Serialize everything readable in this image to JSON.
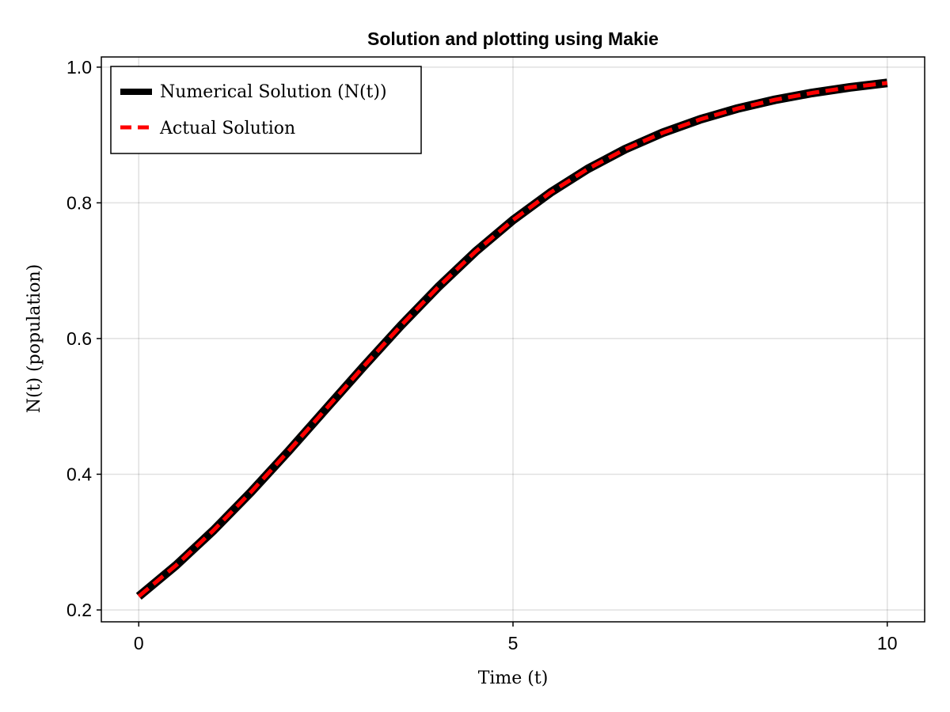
{
  "chart_data": {
    "type": "line",
    "title": "Solution and plotting using Makie",
    "xlabel": "Time (t)",
    "ylabel": "N(t) (population)",
    "xlim": [
      -0.5,
      10.5
    ],
    "ylim": [
      0.1825,
      1.015
    ],
    "xticks": [
      0,
      5,
      10
    ],
    "xtick_labels": [
      "0",
      "5",
      "10"
    ],
    "yticks": [
      0.2,
      0.4,
      0.6,
      0.8,
      1.0
    ],
    "ytick_labels": [
      "0.2",
      "0.4",
      "0.6",
      "0.8",
      "1.0"
    ],
    "grid": true,
    "legend_position": "top-left",
    "x": [
      0,
      0.5,
      1,
      1.5,
      2,
      2.5,
      3,
      3.5,
      4,
      4.5,
      5,
      5.5,
      6,
      6.5,
      7,
      7.5,
      8,
      8.5,
      9,
      9.5,
      10
    ],
    "series": [
      {
        "name": "Numerical Solution (N(t))",
        "color": "#000000",
        "style": "solid",
        "values": [
          0.22,
          0.2659,
          0.3174,
          0.3738,
          0.434,
          0.4961,
          0.5583,
          0.6188,
          0.6758,
          0.728,
          0.7746,
          0.8152,
          0.85,
          0.8792,
          0.9033,
          0.923,
          0.939,
          0.9519,
          0.9621,
          0.9702,
          0.9767
        ]
      },
      {
        "name": "Actual Solution",
        "color": "#ff0000",
        "style": "dashed",
        "values": [
          0.22,
          0.2659,
          0.3174,
          0.3738,
          0.434,
          0.4961,
          0.5583,
          0.6188,
          0.6758,
          0.728,
          0.7746,
          0.8152,
          0.85,
          0.8792,
          0.9033,
          0.923,
          0.939,
          0.9519,
          0.9621,
          0.9702,
          0.9767
        ]
      }
    ]
  }
}
